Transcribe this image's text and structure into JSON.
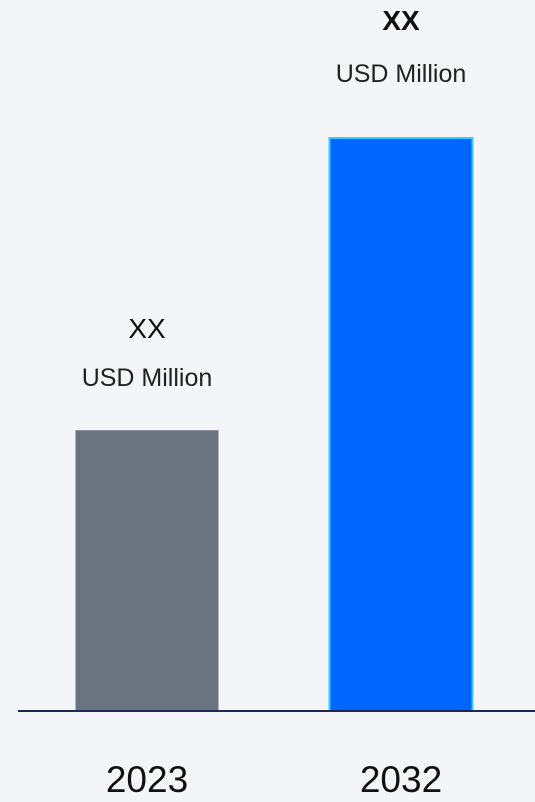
{
  "chart_data": {
    "type": "bar",
    "categories": [
      "2023",
      "2032"
    ],
    "values": [
      0.49,
      1.0
    ],
    "value_labels": [
      "XX",
      "XX"
    ],
    "unit_labels": [
      "USD Million",
      "USD Million"
    ],
    "title": "",
    "xlabel": "",
    "ylabel": "",
    "ylim": [
      0,
      1
    ],
    "grid": false,
    "legend": "none",
    "colors": {
      "bar_2023": "#6b7280",
      "bar_2032": "#0066ff",
      "bar_2032_border": "#33ccff",
      "axis": "#1f2a4a"
    }
  }
}
